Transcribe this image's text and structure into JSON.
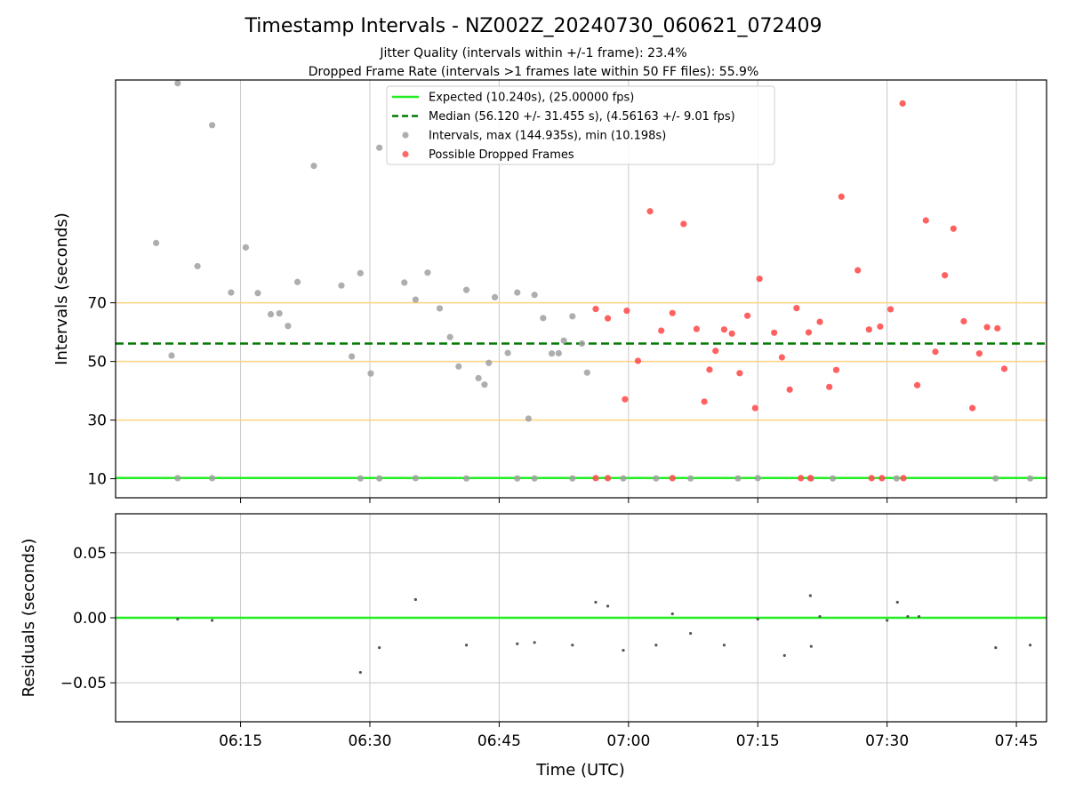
{
  "titles": {
    "main": "Timestamp Intervals - NZ002Z_20240730_060621_072409",
    "line1": "Jitter Quality (intervals within +/-1 frame): 23.4%",
    "line2": "Dropped Frame Rate (intervals >1 frames late within 50 FF files): 55.9%"
  },
  "colors": {
    "expected": "#22ee22",
    "median": "#007a00",
    "reference": "#ffd27f",
    "interval": "#a0a0a0",
    "dropped": "#ff5050",
    "residual": "#555555",
    "grid": "#c8c8c8"
  },
  "chart_data": [
    {
      "type": "scatter",
      "ylabel": "Intervals (seconds)",
      "xlim_minutes": [
        -5.5,
        102.5
      ],
      "ylim": [
        3.5,
        146
      ],
      "ytick_labels": [
        "10",
        "30",
        "50",
        "70"
      ],
      "ytick_values": [
        10,
        30,
        50,
        70
      ],
      "xticks_minutes": [
        9,
        24,
        39,
        54,
        69,
        84,
        99
      ],
      "grid": "vertical",
      "legend_position": "top-center",
      "expected_line": {
        "y": 10.24,
        "label": "Expected (10.240s), (25.00000 fps)"
      },
      "median_line": {
        "y": 56.12,
        "label": "Median (56.120 +/- 31.455 s), (4.56163 +/- 9.01 fps)"
      },
      "reference_lines": [
        30,
        50,
        70
      ],
      "series": [
        {
          "name": "Intervals, max (144.935s), min (10.198s)",
          "points": [
            [
              -0.8,
              90.4
            ],
            [
              1.0,
              52.0
            ],
            [
              1.7,
              144.9
            ],
            [
              1.7,
              10.2
            ],
            [
              4.0,
              82.5
            ],
            [
              5.7,
              130.6
            ],
            [
              5.7,
              10.2
            ],
            [
              7.9,
              73.5
            ],
            [
              9.6,
              88.9
            ],
            [
              11.0,
              73.3
            ],
            [
              12.5,
              66.1
            ],
            [
              13.5,
              66.4
            ],
            [
              14.5,
              62.1
            ],
            [
              15.6,
              77.1
            ],
            [
              17.5,
              116.7
            ],
            [
              20.7,
              75.9
            ],
            [
              21.9,
              51.7
            ],
            [
              22.9,
              80.1
            ],
            [
              22.9,
              10.1
            ],
            [
              24.1,
              45.9
            ],
            [
              25.1,
              122.9
            ],
            [
              25.1,
              10.1
            ],
            [
              28.0,
              76.9
            ],
            [
              29.3,
              71.1
            ],
            [
              29.3,
              10.2
            ],
            [
              30.7,
              80.3
            ],
            [
              32.1,
              68.1
            ],
            [
              33.3,
              58.3
            ],
            [
              34.3,
              48.3
            ],
            [
              35.2,
              74.4
            ],
            [
              35.2,
              10.1
            ],
            [
              36.6,
              44.3
            ],
            [
              37.3,
              42.1
            ],
            [
              37.8,
              49.5
            ],
            [
              38.5,
              71.9
            ],
            [
              40.0,
              52.9
            ],
            [
              41.1,
              73.5
            ],
            [
              41.1,
              10.1
            ],
            [
              42.4,
              30.5
            ],
            [
              43.1,
              72.7
            ],
            [
              43.1,
              10.1
            ],
            [
              44.1,
              64.8
            ],
            [
              45.1,
              52.7
            ],
            [
              45.9,
              52.8
            ],
            [
              46.5,
              57.1
            ],
            [
              47.5,
              65.4
            ],
            [
              47.5,
              10.1
            ],
            [
              48.6,
              56.1
            ],
            [
              49.2,
              46.2
            ],
            [
              53.4,
              10.1
            ],
            [
              57.2,
              10.1
            ],
            [
              61.2,
              10.1
            ],
            [
              66.7,
              10.1
            ],
            [
              69.0,
              10.2
            ],
            [
              75.2,
              10.1
            ],
            [
              77.7,
              10.1
            ],
            [
              85.1,
              10.1
            ],
            [
              96.6,
              10.1
            ],
            [
              100.6,
              10.1
            ]
          ]
        },
        {
          "name": "Possible Dropped Frames",
          "points": [
            [
              50.2,
              67.9
            ],
            [
              51.6,
              64.7
            ],
            [
              53.6,
              37.1
            ],
            [
              53.8,
              67.3
            ],
            [
              55.1,
              50.2
            ],
            [
              56.5,
              101.2
            ],
            [
              57.8,
              60.5
            ],
            [
              59.1,
              66.5
            ],
            [
              60.4,
              96.9
            ],
            [
              61.9,
              61.1
            ],
            [
              62.8,
              36.3
            ],
            [
              63.4,
              47.2
            ],
            [
              64.1,
              53.6
            ],
            [
              65.1,
              60.9
            ],
            [
              66.0,
              59.5
            ],
            [
              66.9,
              46.0
            ],
            [
              67.8,
              65.6
            ],
            [
              68.7,
              34.1
            ],
            [
              69.2,
              78.2
            ],
            [
              70.9,
              59.8
            ],
            [
              71.8,
              51.4
            ],
            [
              72.7,
              40.4
            ],
            [
              73.5,
              68.2
            ],
            [
              74.9,
              59.9
            ],
            [
              76.2,
              63.5
            ],
            [
              77.3,
              41.3
            ],
            [
              78.1,
              47.1
            ],
            [
              78.7,
              106.2
            ],
            [
              80.6,
              81.1
            ],
            [
              81.9,
              60.9
            ],
            [
              83.2,
              61.9
            ],
            [
              84.4,
              67.8
            ],
            [
              85.8,
              138.0
            ],
            [
              87.5,
              41.9
            ],
            [
              88.5,
              98.1
            ],
            [
              89.6,
              53.3
            ],
            [
              90.7,
              79.4
            ],
            [
              91.7,
              95.3
            ],
            [
              92.9,
              63.7
            ],
            [
              93.9,
              34.1
            ],
            [
              94.7,
              52.7
            ],
            [
              95.6,
              61.7
            ],
            [
              96.8,
              61.3
            ],
            [
              97.6,
              47.5
            ],
            [
              50.2,
              10.2
            ],
            [
              51.6,
              10.2
            ],
            [
              59.1,
              10.2
            ],
            [
              74.0,
              10.2
            ],
            [
              75.1,
              10.2
            ],
            [
              82.2,
              10.2
            ],
            [
              83.4,
              10.2
            ],
            [
              85.9,
              10.2
            ]
          ]
        }
      ]
    },
    {
      "type": "scatter",
      "ylabel": "Residuals (seconds)",
      "xlabel": "Time (UTC)",
      "xlim_minutes": [
        -5.5,
        102.5
      ],
      "ylim": [
        -0.08,
        0.08
      ],
      "ytick_labels": [
        "0.05",
        "0.00",
        "−0.05"
      ],
      "ytick_values": [
        0.05,
        0.0,
        -0.05
      ],
      "xticks_minutes": [
        9,
        24,
        39,
        54,
        69,
        84,
        99
      ],
      "xtick_labels": [
        "06:15",
        "06:30",
        "06:45",
        "07:00",
        "07:15",
        "07:30",
        "07:45"
      ],
      "grid": "both",
      "zero_line": 0,
      "points": [
        [
          1.7,
          -0.001
        ],
        [
          5.7,
          -0.002
        ],
        [
          22.9,
          -0.042
        ],
        [
          25.1,
          -0.023
        ],
        [
          29.3,
          0.014
        ],
        [
          35.2,
          -0.021
        ],
        [
          41.1,
          -0.02
        ],
        [
          43.1,
          -0.019
        ],
        [
          47.5,
          -0.021
        ],
        [
          50.2,
          0.012
        ],
        [
          51.6,
          0.009
        ],
        [
          53.4,
          -0.025
        ],
        [
          57.2,
          -0.021
        ],
        [
          59.1,
          0.003
        ],
        [
          61.2,
          -0.012
        ],
        [
          65.1,
          -0.021
        ],
        [
          69.0,
          -0.001
        ],
        [
          72.1,
          -0.029
        ],
        [
          75.2,
          -0.022
        ],
        [
          75.1,
          0.017
        ],
        [
          76.2,
          0.001
        ],
        [
          84.0,
          -0.002
        ],
        [
          85.2,
          0.012
        ],
        [
          86.4,
          0.001
        ],
        [
          87.7,
          0.001
        ],
        [
          96.6,
          -0.023
        ],
        [
          100.6,
          -0.021
        ]
      ]
    }
  ]
}
